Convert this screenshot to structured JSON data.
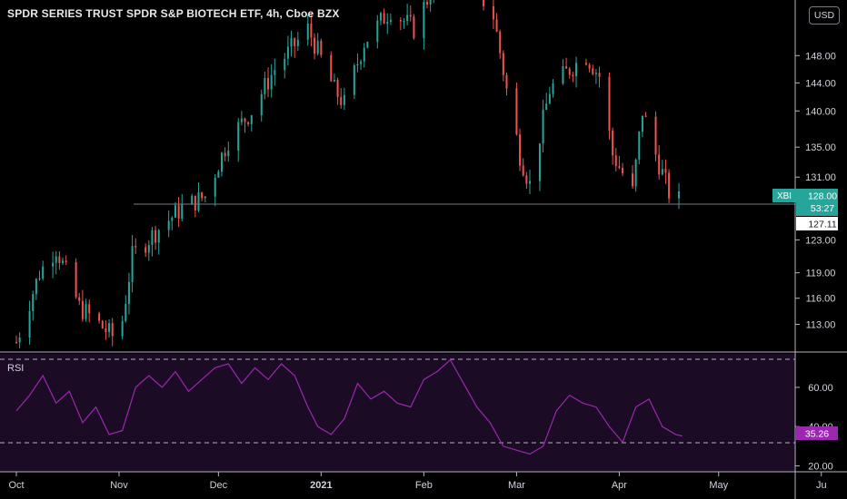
{
  "header": {
    "title": "SPDR SERIES TRUST SPDR S&P BIOTECH ETF, 4h, Cboe BZX",
    "currency": "USD"
  },
  "price_badge": {
    "ticker": "XBI",
    "price": "128.00",
    "countdown": "53:27",
    "ref_price": "127.11",
    "color": "#26a69a"
  },
  "rsi": {
    "label": "RSI",
    "value": "35.26",
    "color": "#9c27b0"
  },
  "colors": {
    "up": "#26a69a",
    "down": "#ef5350",
    "background": "#000000",
    "rsi_fill": "#1b0b24"
  },
  "chart_data": [
    {
      "type": "candlestick",
      "title": "SPDR SERIES TRUST SPDR S&P BIOTECH ETF, 4h, Cboe BZX",
      "y_scale": "log",
      "ylim": [
        109.9,
        156.5
      ],
      "y_ticks": [
        "148.00",
        "144.00",
        "140.00",
        "135.00",
        "131.00",
        "128.00",
        "123.00",
        "119.00",
        "116.00",
        "113.00"
      ],
      "x_ticks": [
        "Oct",
        "Nov",
        "Dec",
        "2021",
        "Feb",
        "Mar",
        "Apr",
        "May",
        "Ju"
      ],
      "horizontal_line": 127.11,
      "last_price": 128.0,
      "close_path": [
        [
          "2020-10-01",
          111
        ],
        [
          "2020-10-08",
          119
        ],
        [
          "2020-10-13",
          122
        ],
        [
          "2020-10-20",
          115
        ],
        [
          "2020-10-26",
          113
        ],
        [
          "2020-11-01",
          111
        ],
        [
          "2020-11-05",
          121
        ],
        [
          "2020-11-12",
          124
        ],
        [
          "2020-11-20",
          127
        ],
        [
          "2020-11-27",
          128.5
        ],
        [
          "2020-12-04",
          136
        ],
        [
          "2020-12-11",
          140
        ],
        [
          "2020-12-18",
          146
        ],
        [
          "2020-12-28",
          152
        ],
        [
          "2021-01-05",
          143
        ],
        [
          "2021-01-08",
          141
        ],
        [
          "2021-01-14",
          150
        ],
        [
          "2021-01-22",
          155
        ],
        [
          "2021-01-29",
          152
        ],
        [
          "2021-02-05",
          160
        ],
        [
          "2021-02-12",
          162
        ],
        [
          "2021-02-22",
          154
        ],
        [
          "2021-02-26",
          143
        ],
        [
          "2021-03-02",
          134
        ],
        [
          "2021-03-05",
          130
        ],
        [
          "2021-03-11",
          143
        ],
        [
          "2021-03-17",
          146
        ],
        [
          "2021-03-22",
          148
        ],
        [
          "2021-03-26",
          145
        ],
        [
          "2021-03-30",
          134
        ],
        [
          "2021-04-05",
          129
        ],
        [
          "2021-04-08",
          140
        ],
        [
          "2021-04-12",
          134
        ],
        [
          "2021-04-16",
          129
        ],
        [
          "2021-04-19",
          128
        ]
      ]
    },
    {
      "type": "line",
      "name": "RSI",
      "ylim": [
        17,
        78
      ],
      "y_ticks": [
        "60.00",
        "40.00",
        "20.00"
      ],
      "bands": [
        30,
        70
      ],
      "last_value": 35.26,
      "points": [
        [
          "2020-10-01",
          48
        ],
        [
          "2020-10-05",
          56
        ],
        [
          "2020-10-09",
          66
        ],
        [
          "2020-10-13",
          52
        ],
        [
          "2020-10-17",
          58
        ],
        [
          "2020-10-21",
          42
        ],
        [
          "2020-10-25",
          50
        ],
        [
          "2020-10-29",
          36
        ],
        [
          "2020-11-02",
          38
        ],
        [
          "2020-11-06",
          60
        ],
        [
          "2020-11-10",
          66
        ],
        [
          "2020-11-14",
          60
        ],
        [
          "2020-11-18",
          68
        ],
        [
          "2020-11-22",
          58
        ],
        [
          "2020-11-26",
          64
        ],
        [
          "2020-11-30",
          70
        ],
        [
          "2020-12-04",
          72
        ],
        [
          "2020-12-08",
          62
        ],
        [
          "2020-12-12",
          70
        ],
        [
          "2020-12-16",
          64
        ],
        [
          "2020-12-20",
          72
        ],
        [
          "2020-12-24",
          66
        ],
        [
          "2020-12-28",
          50
        ],
        [
          "2020-12-31",
          40
        ],
        [
          "2021-01-04",
          36
        ],
        [
          "2021-01-08",
          44
        ],
        [
          "2021-01-12",
          62
        ],
        [
          "2021-01-16",
          54
        ],
        [
          "2021-01-20",
          58
        ],
        [
          "2021-01-24",
          52
        ],
        [
          "2021-01-28",
          50
        ],
        [
          "2021-02-01",
          64
        ],
        [
          "2021-02-05",
          68
        ],
        [
          "2021-02-09",
          74
        ],
        [
          "2021-02-13",
          62
        ],
        [
          "2021-02-17",
          50
        ],
        [
          "2021-02-21",
          42
        ],
        [
          "2021-02-25",
          30
        ],
        [
          "2021-03-01",
          28
        ],
        [
          "2021-03-05",
          26
        ],
        [
          "2021-03-09",
          30
        ],
        [
          "2021-03-13",
          48
        ],
        [
          "2021-03-17",
          56
        ],
        [
          "2021-03-21",
          52
        ],
        [
          "2021-03-25",
          50
        ],
        [
          "2021-03-29",
          40
        ],
        [
          "2021-04-02",
          32
        ],
        [
          "2021-04-06",
          50
        ],
        [
          "2021-04-10",
          54
        ],
        [
          "2021-04-14",
          40
        ],
        [
          "2021-04-18",
          36
        ],
        [
          "2021-04-20",
          35.26
        ]
      ]
    }
  ]
}
